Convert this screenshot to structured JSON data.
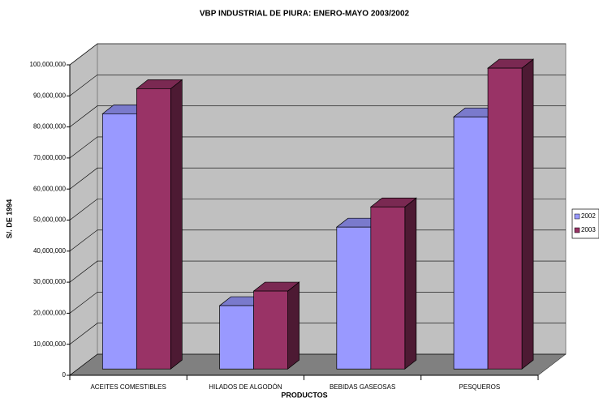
{
  "chart_data": {
    "type": "bar",
    "title": "VBP INDUSTRIAL DE PIURA: ENERO-MAYO 2003/2002",
    "x_label": "PRODUCTOS",
    "y_label": "S/. DE 1994",
    "categories": [
      "ACEITES COMESTIBLES",
      "HILADOS DE ALGODÓN",
      "BEBIDAS GASEOSAS",
      "PESQUEROS"
    ],
    "series": [
      {
        "name": "2002",
        "color": "#9999ff",
        "values": [
          82200000,
          20400000,
          45700000,
          81200000
        ]
      },
      {
        "name": "2003",
        "color": "#993366",
        "values": [
          90300000,
          25100000,
          52200000,
          96900000
        ]
      }
    ],
    "ylim": [
      0,
      100000000
    ],
    "yticks": [
      0,
      {
        "value": 10000000,
        "label": "10,000,000"
      },
      {
        "value": 20000000,
        "label": "20,000,000"
      },
      {
        "value": 30000000,
        "label": "30,000,000"
      },
      {
        "value": 40000000,
        "label": "40,000,000"
      },
      {
        "value": 50000000,
        "label": "50,000,000"
      },
      {
        "value": 60000000,
        "label": "60,000,000"
      },
      {
        "value": 70000000,
        "label": "70,000,000"
      },
      {
        "value": 80000000,
        "label": "80,000,000"
      },
      {
        "value": 90000000,
        "label": "90,000,000"
      },
      {
        "value": 100000000,
        "label": "100,000,000"
      }
    ],
    "grid": true,
    "legend": "right"
  }
}
